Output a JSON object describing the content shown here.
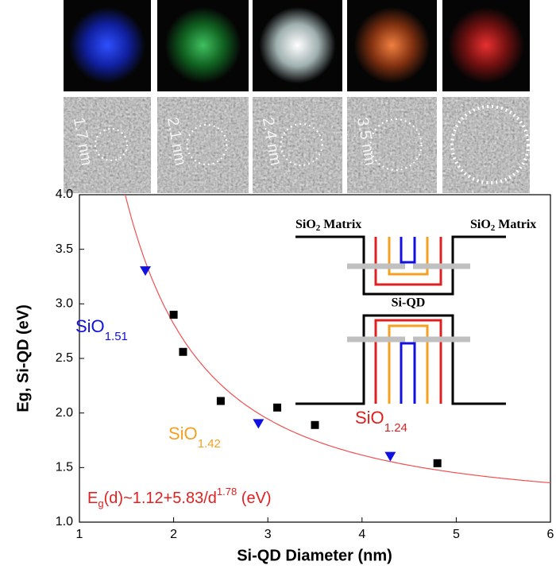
{
  "panels": {
    "tem_labels": [
      "1.7 nm",
      "2.1 nm",
      "2.4 nm",
      "3.5 nm"
    ]
  },
  "chart_data": {
    "type": "scatter",
    "x_label": "Si-QD Diameter (nm)",
    "y_label": "Eg, Si-QD (eV)",
    "xlim": [
      1,
      6
    ],
    "xticks": [
      1,
      2,
      3,
      4,
      5,
      6
    ],
    "ylim": [
      1.0,
      4.0
    ],
    "yticks": [
      {
        "value": 1.0,
        "label": "1.0"
      },
      {
        "value": 1.5,
        "label": "1.5"
      },
      {
        "value": 2.0,
        "label": "2.0"
      },
      {
        "value": 2.5,
        "label": "2.5"
      },
      {
        "value": 3.0,
        "label": "3.0"
      },
      {
        "value": 3.5,
        "label": "3.5"
      },
      {
        "value": 4.0,
        "label": "4.0"
      }
    ],
    "series": [
      {
        "marker": "triangle",
        "color": "#1010e0",
        "x": [
          1.7,
          2.9,
          4.3
        ],
        "values": [
          3.3,
          1.9,
          1.6
        ]
      },
      {
        "marker": "square",
        "color": "#000000",
        "x": [
          2.0,
          2.1,
          2.5,
          3.1,
          3.5,
          4.8
        ],
        "values": [
          2.9,
          2.56,
          2.11,
          2.05,
          1.89,
          1.54
        ]
      }
    ],
    "fit": {
      "a": 1.12,
      "b": 5.83,
      "p": 1.78,
      "color": "#f05050"
    },
    "annotations": [
      {
        "parts": [
          "SiO",
          "1.51"
        ],
        "color": "#1010e0"
      },
      {
        "parts": [
          "SiO",
          "1.42"
        ],
        "color": "#f5a020"
      },
      {
        "parts": [
          "SiO",
          "1.24"
        ],
        "color": "#e02020"
      },
      {
        "parts": [
          "E",
          "g",
          "(d)~1.12+5.83/d",
          "1.78",
          " (eV)"
        ],
        "color": "#e02020"
      }
    ],
    "inset": {
      "left_label": [
        "SiO",
        "2",
        " Matrix"
      ],
      "right_label": [
        "SiO",
        "2",
        " Matrix"
      ],
      "center_label": "Si-QD"
    }
  }
}
